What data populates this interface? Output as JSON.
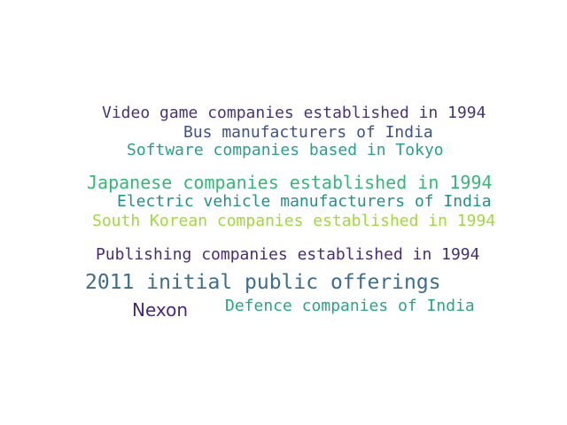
{
  "word_cloud": {
    "words": [
      {
        "text": "Video game companies established in 1994",
        "color": "#46337e"
      },
      {
        "text": "Bus manufacturers of India",
        "color": "#3b528b"
      },
      {
        "text": "Software companies based in Tokyo",
        "color": "#25a18e"
      },
      {
        "text": "Japanese companies established in 1994",
        "color": "#35b779"
      },
      {
        "text": "Electric vehicle manufacturers of India",
        "color": "#21918c"
      },
      {
        "text": "South Korean companies established in 1994",
        "color": "#a0da39"
      },
      {
        "text": "Publishing companies established in 1994",
        "color": "#472d7b"
      },
      {
        "text": "2011 initial public offerings",
        "color": "#3e6e8e"
      },
      {
        "text": "Nexon",
        "color": "#482878"
      },
      {
        "text": "Defence companies of India",
        "color": "#26a784"
      }
    ]
  }
}
